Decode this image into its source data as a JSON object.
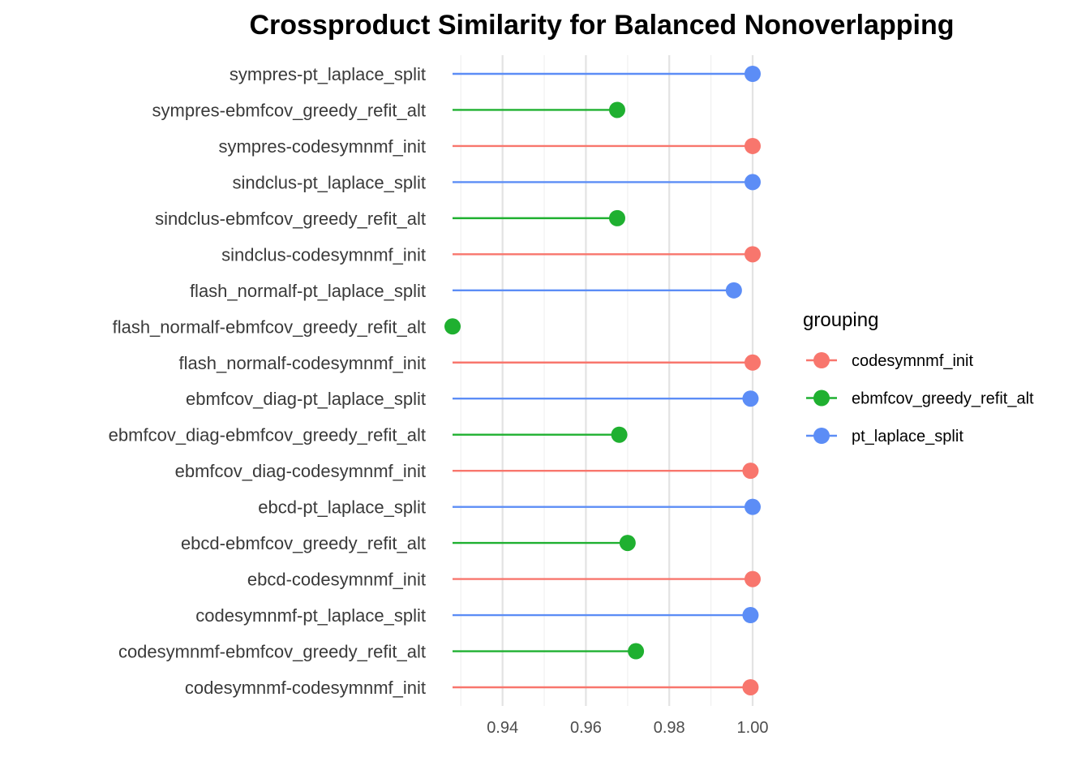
{
  "chart_data": {
    "type": "lollipop",
    "title": "Crossproduct Similarity for Balanced Nonoverlapping",
    "xlabel": "",
    "ylabel": "",
    "xlim": [
      0.928,
      1.0
    ],
    "x_ticks": [
      "0.94",
      "0.96",
      "0.98",
      "1.00"
    ],
    "x_tick_values": [
      0.94,
      0.96,
      0.98,
      1.0
    ],
    "x_minor_ticks": [
      0.93,
      0.95,
      0.97,
      0.99
    ],
    "grid": true,
    "legend": {
      "title": "grouping",
      "placement": "right",
      "entries": [
        {
          "label": "codesymnmf_init",
          "color": "#F8766D"
        },
        {
          "label": "ebmfcov_greedy_refit_alt",
          "color": "#1FB030"
        },
        {
          "label": "pt_laplace_split",
          "color": "#5C8DF6"
        }
      ]
    },
    "points": [
      {
        "label": "sympres-pt_laplace_split",
        "group": "pt_laplace_split",
        "value": 1.0
      },
      {
        "label": "sympres-ebmfcov_greedy_refit_alt",
        "group": "ebmfcov_greedy_refit_alt",
        "value": 0.9675
      },
      {
        "label": "sympres-codesymnmf_init",
        "group": "codesymnmf_init",
        "value": 1.0
      },
      {
        "label": "sindclus-pt_laplace_split",
        "group": "pt_laplace_split",
        "value": 1.0
      },
      {
        "label": "sindclus-ebmfcov_greedy_refit_alt",
        "group": "ebmfcov_greedy_refit_alt",
        "value": 0.9675
      },
      {
        "label": "sindclus-codesymnmf_init",
        "group": "codesymnmf_init",
        "value": 1.0
      },
      {
        "label": "flash_normalf-pt_laplace_split",
        "group": "pt_laplace_split",
        "value": 0.9955
      },
      {
        "label": "flash_normalf-ebmfcov_greedy_refit_alt",
        "group": "ebmfcov_greedy_refit_alt",
        "value": 0.928
      },
      {
        "label": "flash_normalf-codesymnmf_init",
        "group": "codesymnmf_init",
        "value": 1.0
      },
      {
        "label": "ebmfcov_diag-pt_laplace_split",
        "group": "pt_laplace_split",
        "value": 0.9995
      },
      {
        "label": "ebmfcov_diag-ebmfcov_greedy_refit_alt",
        "group": "ebmfcov_greedy_refit_alt",
        "value": 0.968
      },
      {
        "label": "ebmfcov_diag-codesymnmf_init",
        "group": "codesymnmf_init",
        "value": 0.9995
      },
      {
        "label": "ebcd-pt_laplace_split",
        "group": "pt_laplace_split",
        "value": 1.0
      },
      {
        "label": "ebcd-ebmfcov_greedy_refit_alt",
        "group": "ebmfcov_greedy_refit_alt",
        "value": 0.97
      },
      {
        "label": "ebcd-codesymnmf_init",
        "group": "codesymnmf_init",
        "value": 1.0
      },
      {
        "label": "codesymnmf-pt_laplace_split",
        "group": "pt_laplace_split",
        "value": 0.9995
      },
      {
        "label": "codesymnmf-ebmfcov_greedy_refit_alt",
        "group": "ebmfcov_greedy_refit_alt",
        "value": 0.972
      },
      {
        "label": "codesymnmf-codesymnmf_init",
        "group": "codesymnmf_init",
        "value": 0.9995
      }
    ]
  }
}
